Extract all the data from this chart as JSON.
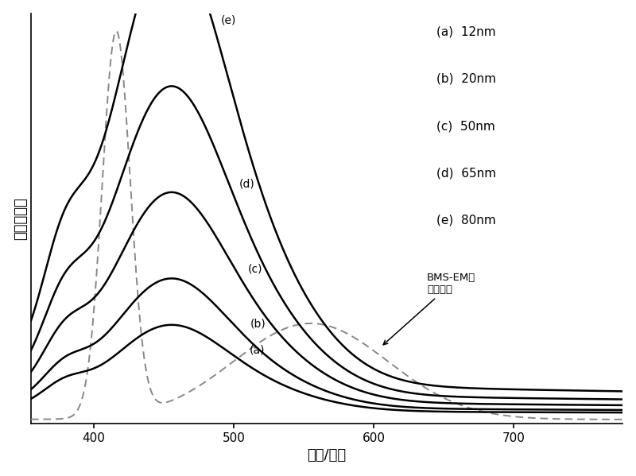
{
  "title": "",
  "xlabel": "波长/纳米",
  "ylabel": "吸收谱强度",
  "xlim": [
    355,
    778
  ],
  "ylim": [
    -0.02,
    0.92
  ],
  "legend_labels": [
    "(a)  12nm",
    "(b)  20nm",
    "(c)  50nm",
    "(d)  65nm",
    "(e)  80nm"
  ],
  "annotation_text": "BMS-EM的\n发射光谱",
  "background_color": "#ffffff",
  "xticks": [
    400,
    500,
    600,
    700
  ],
  "curve_peak_wl": 448,
  "curve_broad_wl": 490,
  "curve_amps": [
    0.14,
    0.21,
    0.34,
    0.5,
    0.72
  ],
  "dashed_sharp_wl": 416,
  "dashed_sharp_sigma": 10,
  "dashed_sharp_amp": 0.88,
  "dashed_broad_wl": 555,
  "dashed_broad_sigma": 55,
  "dashed_broad_amp": 0.22,
  "label_wls": [
    507,
    508,
    506,
    500,
    487
  ],
  "label_offsets": [
    0.015,
    0.015,
    0.015,
    0.015,
    0.015
  ]
}
